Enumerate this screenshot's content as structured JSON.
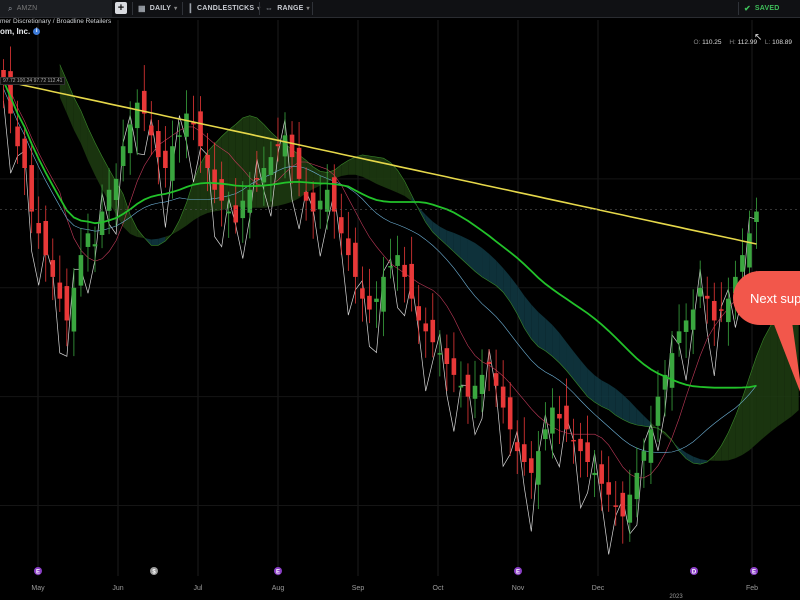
{
  "toolbar": {
    "search_placeholder": "AMZN",
    "add_label": "+",
    "interval_label": "DAILY",
    "chart_type_label": "CANDLESTICKS",
    "range_label": "RANGE",
    "saved_label": "SAVED"
  },
  "header": {
    "breadcrumb": "mer Discretionary / Broadline Retailers",
    "company": "om, Inc.",
    "info_icon": "i"
  },
  "ohlc": {
    "open_label": "O:",
    "open": "110.25",
    "high_label": "H:",
    "high": "112.99",
    "low_label": "L:",
    "low": "108.89"
  },
  "indicator_readout": "97.72  100.24  97.72  112.41",
  "callout": {
    "text": "Next sup"
  },
  "colors": {
    "up": "#3aa63f",
    "down": "#e83838",
    "sma_green": "#22c22a",
    "sma_yellow": "#e6d84a",
    "cloud_bull": "#1f3d12",
    "cloud_bear": "#103a44",
    "callout": "#f2574b"
  },
  "chart_data": {
    "type": "candlestick",
    "ticker": "AMZN",
    "interval": "DAILY",
    "x_labels": [
      "May",
      "Jun",
      "Jul",
      "Aug",
      "Sep",
      "Oct",
      "Nov",
      "Dec",
      "Feb"
    ],
    "year_label": "2023",
    "y_range": [
      80,
      125
    ],
    "events": [
      {
        "label": "E",
        "month_pos": 0.15
      },
      {
        "label": "$",
        "month_pos": 1.6
      },
      {
        "label": "E",
        "month_pos": 3.15
      },
      {
        "label": "E",
        "month_pos": 6.15
      },
      {
        "label": "D",
        "month_pos": 8.35
      },
      {
        "label": "E",
        "month_pos": 9.1
      }
    ],
    "closes": [
      124,
      121,
      118,
      116,
      112,
      110,
      108,
      106,
      104,
      102,
      105,
      108,
      110,
      109,
      112,
      114,
      115,
      118,
      120,
      122,
      121,
      119,
      117,
      116,
      118,
      119,
      121,
      120,
      118,
      116,
      114,
      113,
      112,
      111,
      113,
      114,
      115,
      116,
      117,
      118,
      119,
      117,
      115,
      113,
      112,
      113,
      114,
      112,
      110,
      108,
      106,
      104,
      103,
      104,
      106,
      107,
      108,
      106,
      104,
      102,
      101,
      100,
      99,
      98,
      97,
      96,
      95,
      96,
      97,
      98,
      96,
      94,
      92,
      90,
      89,
      88,
      90,
      92,
      94,
      93,
      92,
      91,
      90,
      89,
      88,
      87,
      86,
      85,
      84,
      86,
      88,
      90,
      92,
      95,
      97,
      99,
      101,
      102,
      103,
      105,
      104,
      102,
      103,
      104,
      106,
      108,
      110,
      112
    ]
  }
}
